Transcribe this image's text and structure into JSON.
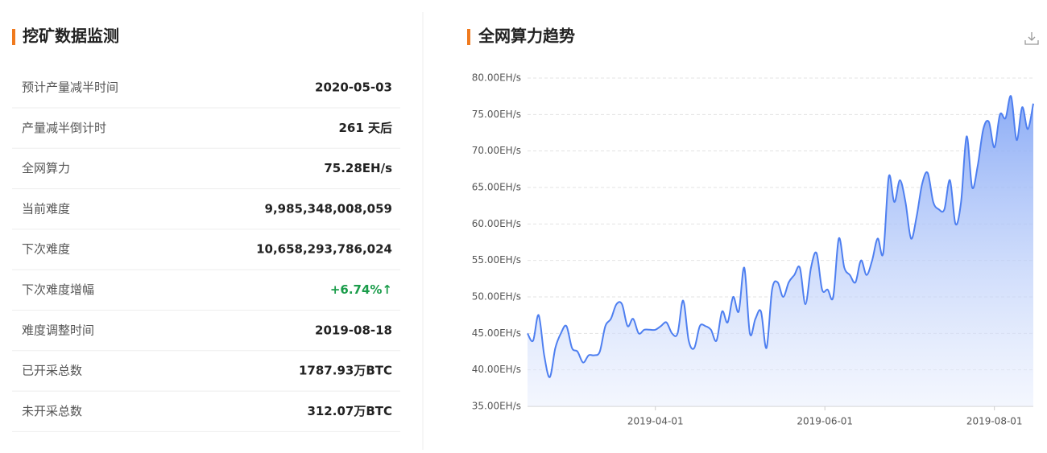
{
  "mining_panel": {
    "title": "挖矿数据监测",
    "rows": [
      [
        "预计产量减半时间",
        "2020-05-03"
      ],
      [
        "产量减半倒计时",
        "261 天后"
      ],
      [
        "全网算力",
        "75.28EH/s"
      ],
      [
        "当前难度",
        "9,985,348,008,059"
      ],
      [
        "下次难度",
        "10,658,293,786,024"
      ],
      [
        "下次难度增幅",
        "+6.74%↑"
      ],
      [
        "难度调整时间",
        "2019-08-18"
      ],
      [
        "已开采总数",
        "1787.93万BTC"
      ],
      [
        "未开采总数",
        "312.07万BTC"
      ]
    ]
  },
  "chart_data": {
    "type": "line",
    "title": "全网算力趋势",
    "color": "#4e7ff0",
    "area": true,
    "grid": true,
    "x": [
      "2019-02-14",
      "2019-02-16",
      "2019-02-18",
      "2019-02-20",
      "2019-02-22",
      "2019-02-24",
      "2019-02-26",
      "2019-02-28",
      "2019-03-02",
      "2019-03-04",
      "2019-03-06",
      "2019-03-08",
      "2019-03-10",
      "2019-03-12",
      "2019-03-14",
      "2019-03-16",
      "2019-03-18",
      "2019-03-20",
      "2019-03-22",
      "2019-03-24",
      "2019-03-26",
      "2019-03-28",
      "2019-03-30",
      "2019-04-01",
      "2019-04-03",
      "2019-04-05",
      "2019-04-07",
      "2019-04-09",
      "2019-04-11",
      "2019-04-13",
      "2019-04-15",
      "2019-04-17",
      "2019-04-19",
      "2019-04-21",
      "2019-04-23",
      "2019-04-25",
      "2019-04-27",
      "2019-04-29",
      "2019-05-01",
      "2019-05-03",
      "2019-05-05",
      "2019-05-07",
      "2019-05-09",
      "2019-05-11",
      "2019-05-13",
      "2019-05-15",
      "2019-05-17",
      "2019-05-19",
      "2019-05-21",
      "2019-05-23",
      "2019-05-25",
      "2019-05-27",
      "2019-05-29",
      "2019-05-31",
      "2019-06-02",
      "2019-06-04",
      "2019-06-06",
      "2019-06-08",
      "2019-06-10",
      "2019-06-12",
      "2019-06-14",
      "2019-06-16",
      "2019-06-18",
      "2019-06-20",
      "2019-06-22",
      "2019-06-24",
      "2019-06-26",
      "2019-06-28",
      "2019-06-30",
      "2019-07-02",
      "2019-07-04",
      "2019-07-06",
      "2019-07-08",
      "2019-07-10",
      "2019-07-12",
      "2019-07-14",
      "2019-07-16",
      "2019-07-18",
      "2019-07-20",
      "2019-07-22",
      "2019-07-24",
      "2019-07-26",
      "2019-07-28",
      "2019-07-30",
      "2019-08-01",
      "2019-08-03",
      "2019-08-05",
      "2019-08-07",
      "2019-08-09",
      "2019-08-11",
      "2019-08-13",
      "2019-08-15"
    ],
    "values": [
      45,
      44,
      47.5,
      42,
      39,
      43,
      45,
      46,
      43,
      42.5,
      41,
      42,
      42,
      42.5,
      46,
      47,
      49,
      49,
      46,
      47,
      45,
      45.5,
      45.5,
      45.5,
      46,
      46.5,
      45,
      45,
      49.5,
      44,
      43,
      46,
      46,
      45.5,
      44,
      48,
      46.5,
      50,
      48,
      54,
      45,
      47,
      48,
      43,
      51,
      52,
      50,
      52,
      53,
      54,
      49,
      54,
      56,
      51,
      51,
      50,
      58,
      54,
      53,
      52,
      55,
      53,
      55,
      58,
      56,
      66.5,
      63,
      66,
      63,
      58,
      61,
      65.5,
      67,
      63,
      62,
      62,
      66,
      60,
      63,
      72,
      65,
      68,
      73,
      74,
      70.5,
      75,
      74.5,
      77.5,
      71.5,
      76,
      73,
      76.5
    ],
    "xlim": [
      "2019-02-14",
      "2019-08-15"
    ],
    "xticks": [
      "2019-04-01",
      "2019-06-01",
      "2019-08-01"
    ],
    "ylim": [
      35,
      80
    ],
    "yticks": [
      {
        "value": 35,
        "label": "35.00EH/s"
      },
      {
        "value": 40,
        "label": "40.00EH/s"
      },
      {
        "value": 45,
        "label": "45.00EH/s"
      },
      {
        "value": 50,
        "label": "50.00EH/s"
      },
      {
        "value": 55,
        "label": "55.00EH/s"
      },
      {
        "value": 60,
        "label": "60.00EH/s"
      },
      {
        "value": 65,
        "label": "65.00EH/s"
      },
      {
        "value": 70,
        "label": "70.00EH/s"
      },
      {
        "value": 75,
        "label": "75.00EH/s"
      },
      {
        "value": 80,
        "label": "80.00EH/s"
      }
    ]
  }
}
